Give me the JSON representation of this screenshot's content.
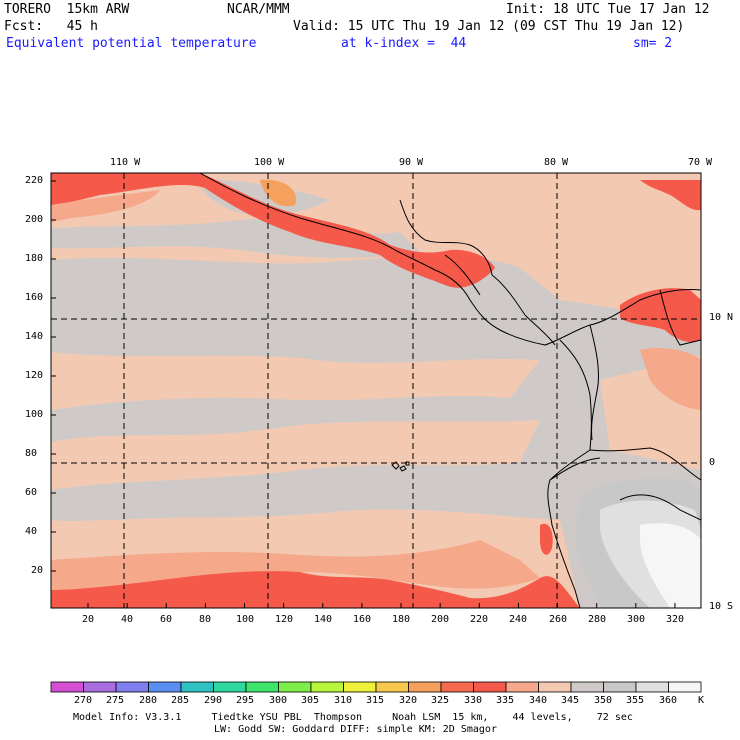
{
  "header": {
    "model": "TORERO  15km ARW",
    "center": "NCAR/MMM",
    "init": "Init: 18 UTC Tue 17 Jan 12",
    "fcst": "Fcst:   45 h",
    "valid": "Valid: 15 UTC Thu 19 Jan 12 (09 CST Thu 19 Jan 12)",
    "field": "Equivalent potential temperature",
    "level": "at k-index =  44",
    "smooth": "sm= 2"
  },
  "map": {
    "lon_labels": [
      "110 W",
      "100 W",
      "90 W",
      "80 W",
      "70 W"
    ],
    "lat_labels": [
      "10 N",
      "0",
      "10 S"
    ],
    "y_ticks": [
      "20",
      "40",
      "60",
      "80",
      "100",
      "120",
      "140",
      "160",
      "180",
      "200",
      "220"
    ],
    "x_ticks": [
      "20",
      "40",
      "60",
      "80",
      "100",
      "120",
      "140",
      "160",
      "180",
      "200",
      "220",
      "240",
      "260",
      "280",
      "300",
      "320"
    ]
  },
  "colorbar": {
    "levels": [
      "270",
      "275",
      "280",
      "285",
      "290",
      "295",
      "300",
      "305",
      "310",
      "315",
      "320",
      "325",
      "330",
      "335",
      "340",
      "345",
      "350",
      "355",
      "360"
    ],
    "unit": "K",
    "colors": [
      "#d44fd4",
      "#a86ee0",
      "#7f7fee",
      "#5a8ef2",
      "#2fc0c0",
      "#2fd8a0",
      "#3ee36a",
      "#7eef4a",
      "#b9f53c",
      "#eef03a",
      "#f7c74e",
      "#f6a05e",
      "#f56b4f",
      "#f45a4c",
      "#f6a88a",
      "#f3c9b2",
      "#cfcac8",
      "#c8c8c8",
      "#e0e0e0",
      "#f6f6f6"
    ]
  },
  "footer": {
    "line1": "Model Info: V3.3.1     Tiedtke YSU PBL  Thompson     Noah LSM  15 km,    44 levels,    72 sec",
    "line2": "LW: Godd SW: Goddard DIFF: simple KM: 2D Smagor"
  }
}
